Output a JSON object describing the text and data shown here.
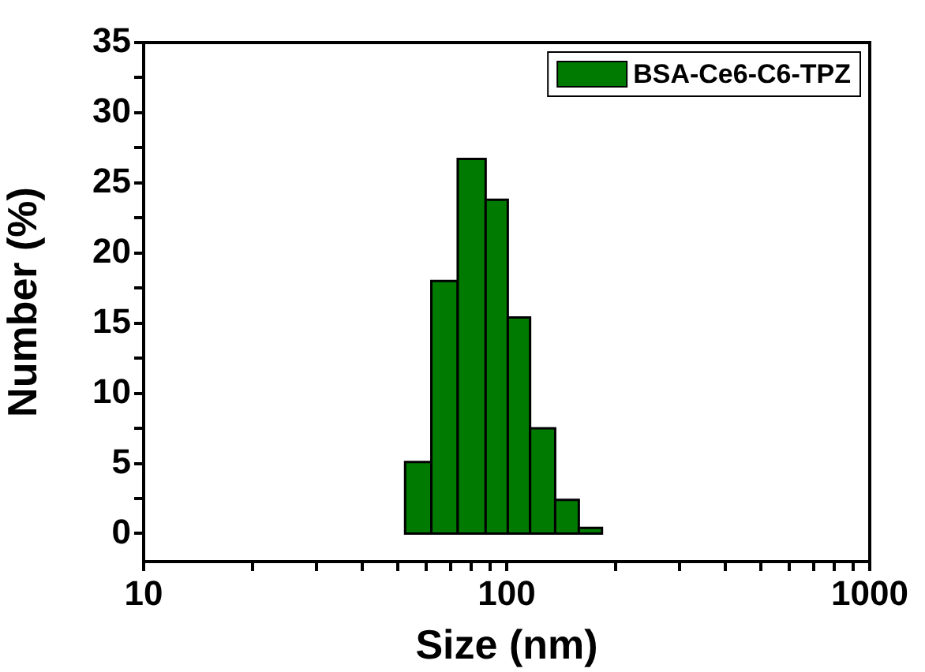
{
  "chart_data": {
    "type": "histogram",
    "xlabel": "Size (nm)",
    "ylabel": "Number (%)",
    "log": "x",
    "bins": [
      52.5,
      62,
      73.3,
      87.5,
      100.7,
      116,
      136,
      158,
      183
    ],
    "series": [
      {
        "name": "BSA-Ce6-C6-TPZ",
        "color": "#007a00",
        "values": [
          5.1,
          18,
          26.7,
          23.8,
          15.4,
          7.5,
          2.4,
          0.4
        ]
      }
    ],
    "xlim": [
      10,
      1000
    ],
    "xticks": [
      10,
      {
        "value": 20,
        "label": null
      },
      {
        "value": 30,
        "label": null
      },
      {
        "value": 40,
        "label": null
      },
      {
        "value": 50,
        "label": null
      },
      {
        "value": 60,
        "label": null
      },
      {
        "value": 70,
        "label": null
      },
      {
        "value": 80,
        "label": null
      },
      {
        "value": 90,
        "label": null
      },
      100,
      {
        "value": 200,
        "label": null
      },
      {
        "value": 300,
        "label": null
      },
      {
        "value": 400,
        "label": null
      },
      {
        "value": 500,
        "label": null
      },
      {
        "value": 600,
        "label": null
      },
      {
        "value": 700,
        "label": null
      },
      {
        "value": 800,
        "label": null
      },
      {
        "value": 900,
        "label": null
      },
      1000
    ],
    "ylim": [
      -2,
      35
    ],
    "yticks": [
      0,
      {
        "value": 2.5,
        "label": null
      },
      5,
      {
        "value": 7.5,
        "label": null
      },
      10,
      {
        "value": 12.5,
        "label": null
      },
      15,
      {
        "value": 17.5,
        "label": null
      },
      20,
      {
        "value": 22.5,
        "label": null
      },
      25,
      {
        "value": 27.5,
        "label": null
      },
      30,
      {
        "value": 32.5,
        "label": null
      },
      35
    ],
    "grid": false,
    "legend": "top right"
  }
}
